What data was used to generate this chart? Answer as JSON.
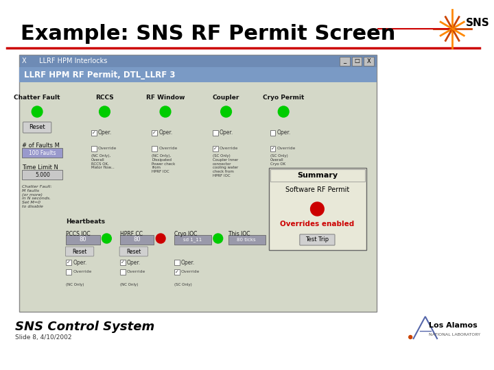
{
  "title": "Example: SNS RF Permit Screen",
  "subtitle": "SNS Control System",
  "slide_info": "Slide 8, 4/10/2002",
  "bg_color": "#ffffff",
  "title_color": "#000000",
  "title_fontsize": 22,
  "red_line_color": "#cc0000",
  "screen_bg": "#d4d8c8",
  "screen_header_bg": "#6e8bb5",
  "screen_title": "LLRF HPM RF Permit, DTL_LLRF 3",
  "screen_window_title": "LLRF HPM Interlocks",
  "columns": [
    "Chatter Fault",
    "RCCS",
    "RF Window",
    "Coupler",
    "Cryo Permit"
  ],
  "green_dots": [
    true,
    true,
    true,
    true,
    true
  ],
  "heartbeat_label": "Heartbeats",
  "pccs_ioc_label": "PCCS IOC",
  "hprf_cc_label": "HPRF CC",
  "cryo_ioc_label": "Cryo IOC",
  "this_ioc_label": "This IOC",
  "summary_title": "Summary",
  "summary_sub": "Software RF Permit",
  "overrides_text": "Overrides enabled",
  "overrides_color": "#cc0000",
  "summary_dot_color": "#cc0000",
  "hprf_dot_color": "#cc0000",
  "pccs_dot_color": "#00cc00",
  "cryo_dot_color": "#00cc00",
  "this_dot_color": "#00cc00",
  "num_faults_label": "# of Faults M",
  "num_faults_val": "100 Faults",
  "time_limit_label": "Time Limit N",
  "time_limit_val": "5.000",
  "chatter_note": "Chatter Fault:\nM faults\n(or more)\nin N seconds.\nSet M=0\nto disable"
}
